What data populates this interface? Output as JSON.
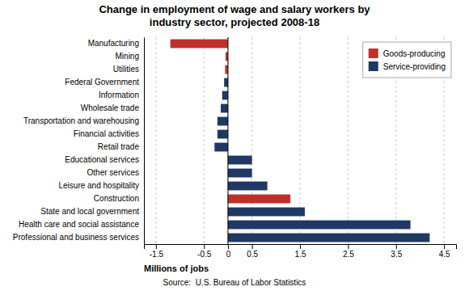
{
  "chart_data": {
    "type": "bar",
    "orientation": "horizontal",
    "title": "Change in employment of wage and salary workers by\nindustry sector, projected 2008-18",
    "xlabel": "Millions of jobs",
    "source": "Source:  U.S. Bureau of Labor Statistics",
    "categories": [
      "Manufacturing",
      "Mining",
      "Utilities",
      "Federal Government",
      "Information",
      "Wholesale trade",
      "Transportation and warehousing",
      "Financial activities",
      "Retail trade",
      "Educational services",
      "Other services",
      "Leisure and hospitality",
      "Construction",
      "State and local government",
      "Health care and social assistance",
      "Professional and business services"
    ],
    "series": [
      {
        "name": "Goods-producing",
        "color": "#c0302a",
        "values": [
          -1.2,
          -0.05,
          -0.06,
          null,
          null,
          null,
          null,
          null,
          null,
          null,
          null,
          null,
          1.3,
          null,
          null,
          null
        ]
      },
      {
        "name": "Service-providing",
        "color": "#1f3864",
        "values": [
          null,
          null,
          null,
          -0.08,
          -0.12,
          -0.15,
          -0.22,
          -0.22,
          -0.28,
          0.5,
          0.5,
          0.82,
          null,
          1.6,
          3.8,
          4.2
        ]
      }
    ],
    "xlim": [
      -1.75,
      4.75
    ],
    "xticks": [
      -1.5,
      -0.5,
      0,
      0.5,
      1.5,
      2.5,
      3.5,
      4.5
    ],
    "grid": true,
    "legend": "upper right"
  }
}
